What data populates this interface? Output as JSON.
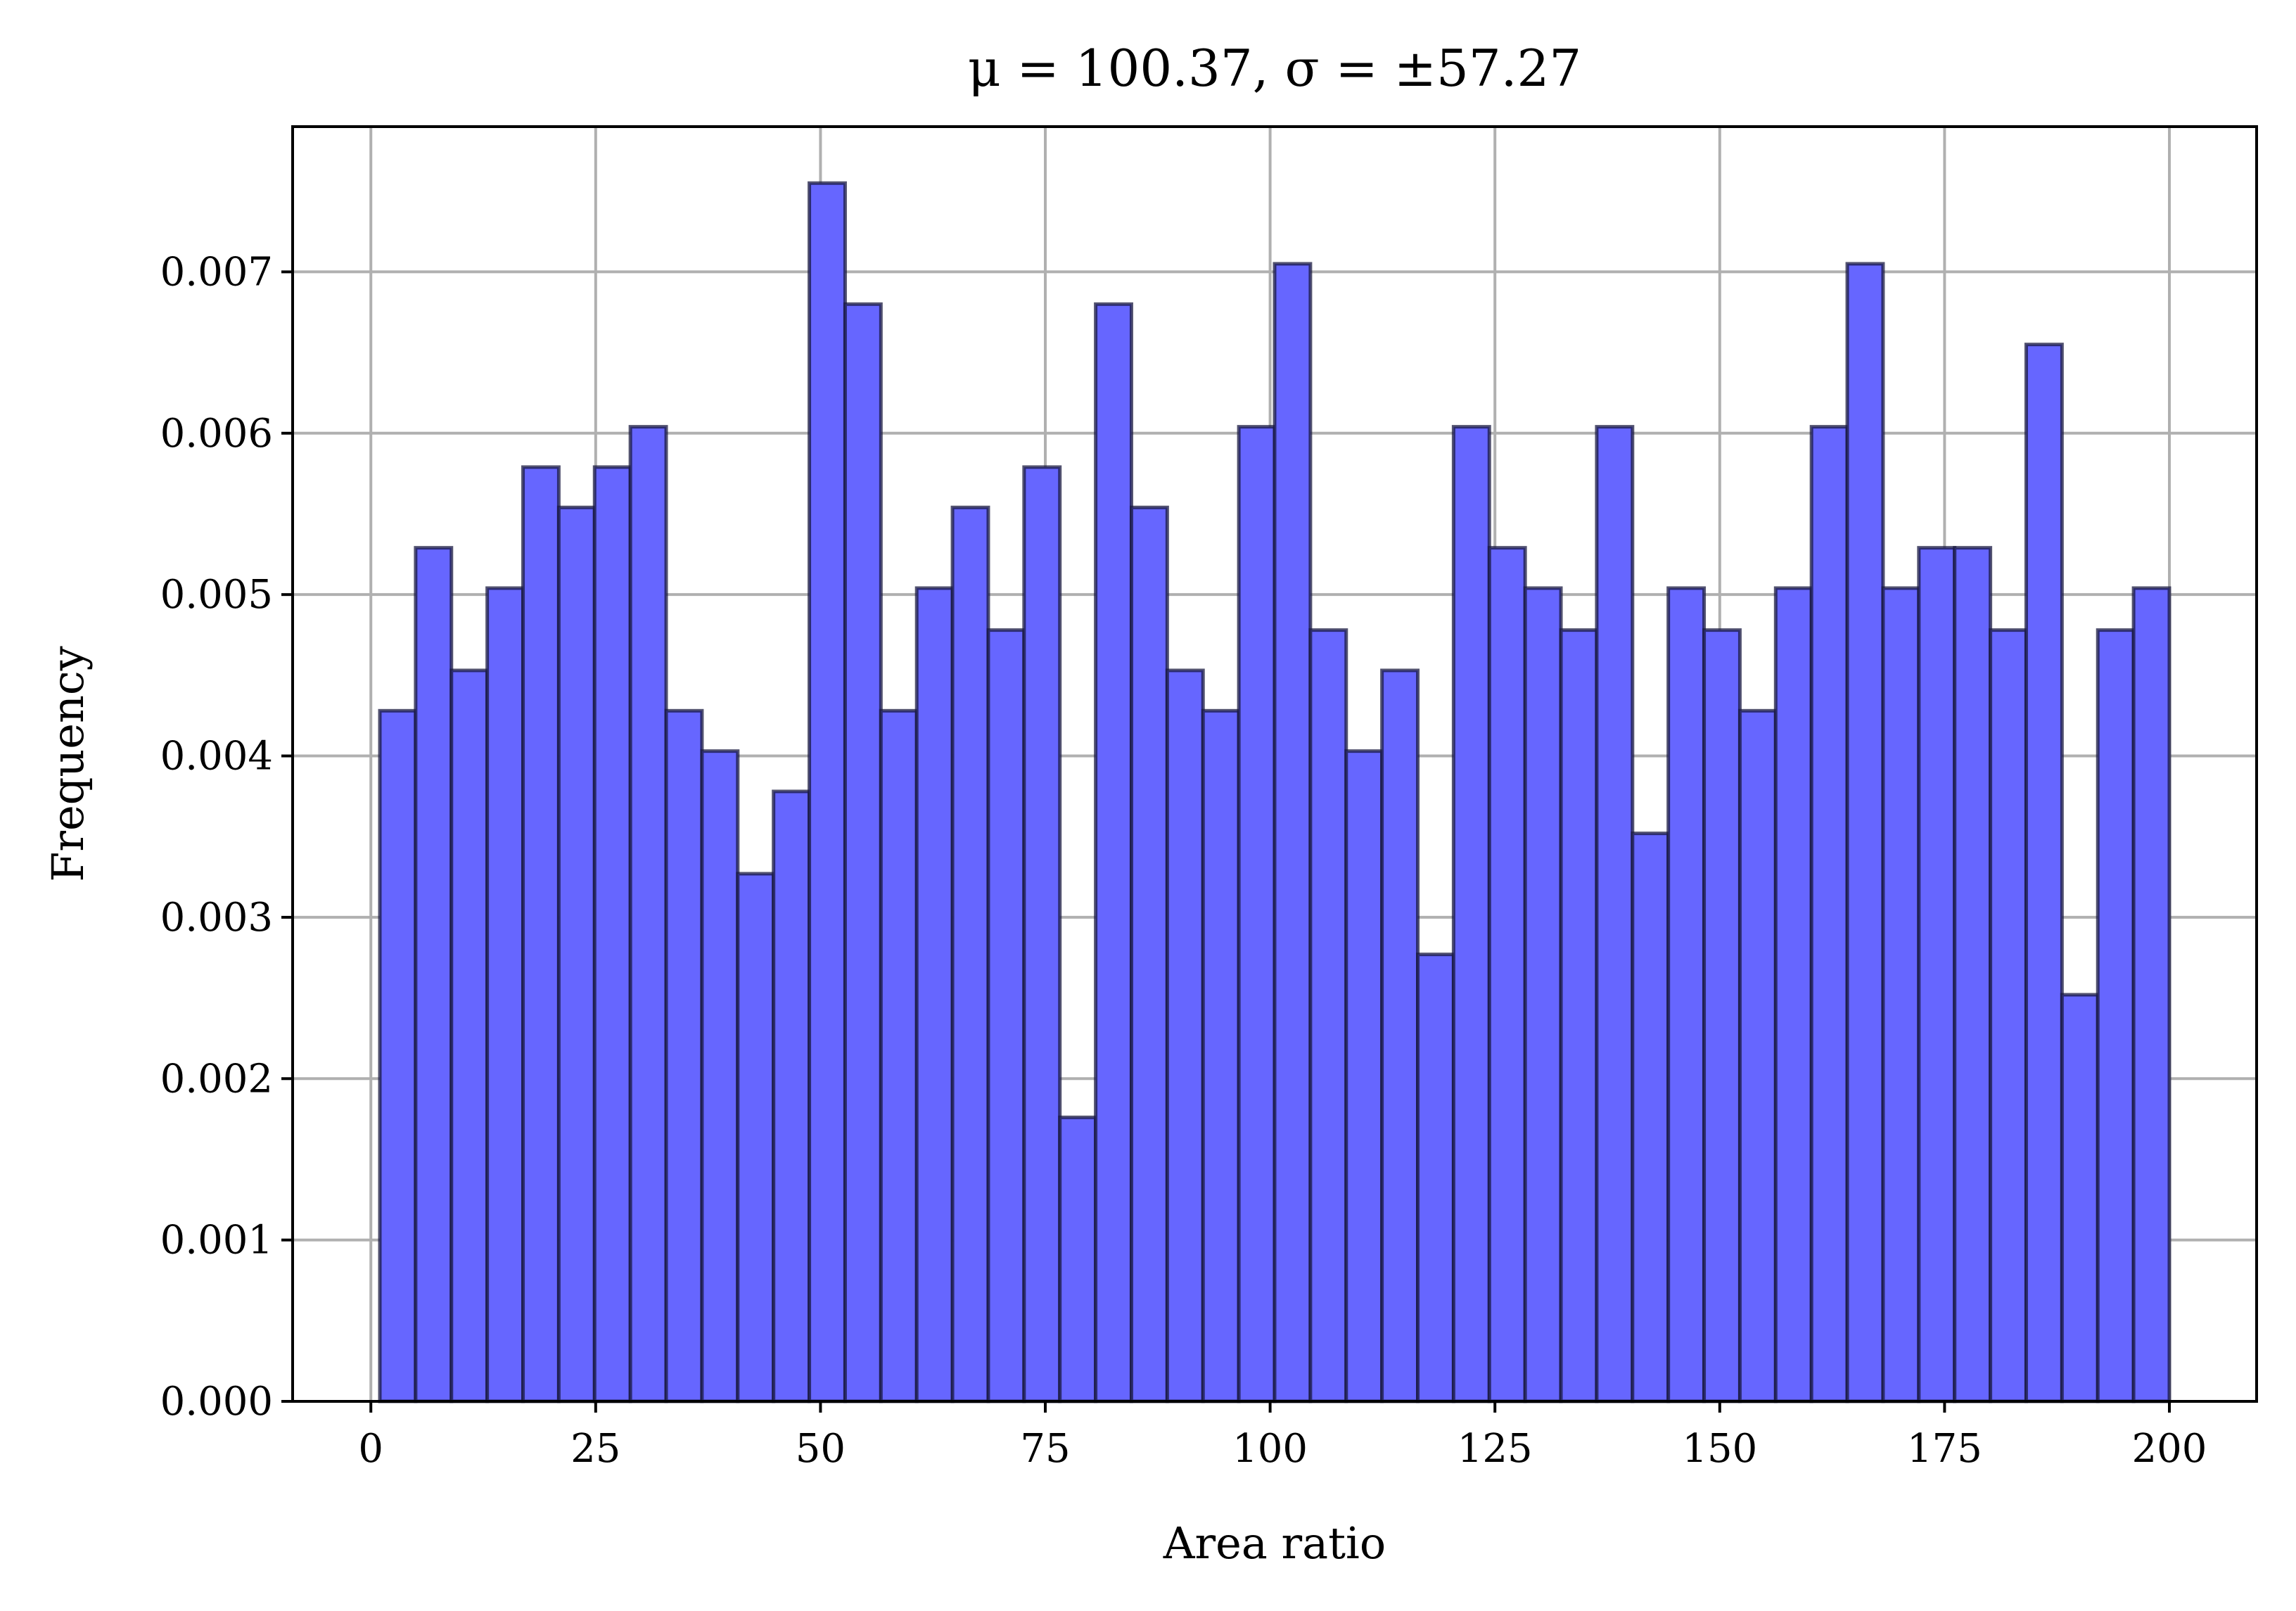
{
  "chart_data": {
    "type": "bar",
    "title": "μ = 100.37, σ = ±57.27",
    "xlabel": "Area ratio",
    "ylabel": "Frequency",
    "xlim": [
      -8.7,
      209.7
    ],
    "ylim": [
      0,
      0.0079
    ],
    "x_ticks": [
      0,
      25,
      50,
      75,
      100,
      125,
      150,
      175,
      200
    ],
    "x_tick_labels": [
      "0",
      "25",
      "50",
      "75",
      "100",
      "125",
      "150",
      "175",
      "200"
    ],
    "y_ticks": [
      0,
      0.001,
      0.002,
      0.003,
      0.004,
      0.005,
      0.006,
      0.007
    ],
    "y_tick_labels": [
      "0.000",
      "0.001",
      "0.002",
      "0.003",
      "0.004",
      "0.005",
      "0.006",
      "0.007"
    ],
    "grid": true,
    "bin_start": 1,
    "bin_width": 3.98,
    "values": [
      0.00428,
      0.00529,
      0.00453,
      0.00504,
      0.00579,
      0.00554,
      0.00579,
      0.00604,
      0.00428,
      0.00403,
      0.00327,
      0.00378,
      0.00755,
      0.0068,
      0.00428,
      0.00504,
      0.00554,
      0.00478,
      0.00579,
      0.00176,
      0.0068,
      0.00554,
      0.00453,
      0.00428,
      0.00604,
      0.00705,
      0.00478,
      0.00403,
      0.00453,
      0.00277,
      0.00604,
      0.00529,
      0.00504,
      0.00478,
      0.00604,
      0.00352,
      0.00504,
      0.00478,
      0.00428,
      0.00504,
      0.00604,
      0.00705,
      0.00504,
      0.00529,
      0.00529,
      0.00478,
      0.00655,
      0.00252,
      0.00478,
      0.00504
    ],
    "colors": {
      "bar_fill": "#6666ff",
      "bar_edge": "#1a1a40",
      "grid": "#b0b0b0"
    }
  }
}
